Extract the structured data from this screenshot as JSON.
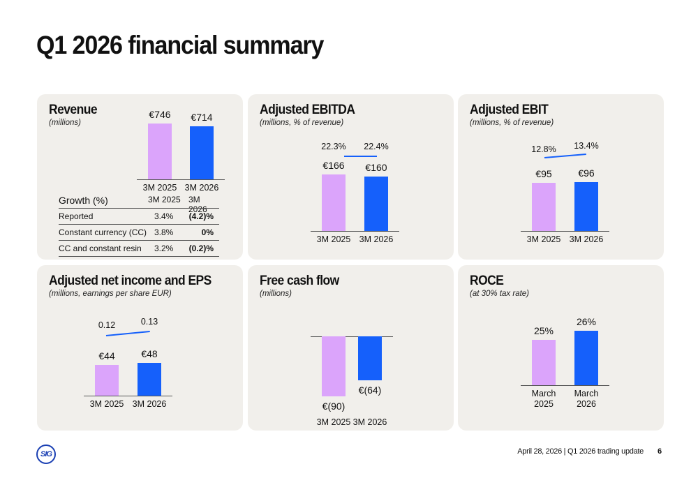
{
  "title": "Q1 2026 financial summary",
  "colors": {
    "prior": "#dba4fb",
    "current": "#1560fb",
    "panel": "#f1efeb"
  },
  "chart_data": [
    {
      "type": "bar",
      "title": "Revenue",
      "subtitle": "(millions)",
      "categories": [
        "3M 2025",
        "3M 2026"
      ],
      "values": [
        746,
        714
      ],
      "value_labels": [
        "€746",
        "€714"
      ]
    },
    {
      "type": "bar",
      "title": "Adjusted EBITDA",
      "subtitle": "(millions, % of revenue)",
      "categories": [
        "3M 2025",
        "3M 2026"
      ],
      "values": [
        166,
        160
      ],
      "value_labels": [
        "€166",
        "€160"
      ],
      "margins": [
        "22.3%",
        "22.4%"
      ]
    },
    {
      "type": "bar",
      "title": "Adjusted EBIT",
      "subtitle": "(millions, % of revenue)",
      "categories": [
        "3M 2025",
        "3M 2026"
      ],
      "values": [
        95,
        96
      ],
      "value_labels": [
        "€95",
        "€96"
      ],
      "margins": [
        "12.8%",
        "13.4%"
      ]
    },
    {
      "type": "bar",
      "title": "Adjusted net income and EPS",
      "subtitle": "(millions, earnings per share EUR)",
      "categories": [
        "3M 2025",
        "3M 2026"
      ],
      "values": [
        44,
        48
      ],
      "value_labels": [
        "€44",
        "€48"
      ],
      "margins": [
        "0.12",
        "0.13"
      ]
    },
    {
      "type": "bar",
      "title": "Free cash flow",
      "subtitle": "(millions)",
      "categories": [
        "3M 2025",
        "3M 2026"
      ],
      "values": [
        -90,
        -64
      ],
      "value_labels": [
        "€(90)",
        "€(64)"
      ]
    },
    {
      "type": "bar",
      "title": "ROCE",
      "subtitle": "(at 30% tax rate)",
      "categories": [
        "March 2025",
        "March 2026"
      ],
      "values": [
        25,
        26
      ],
      "value_labels": [
        "25%",
        "26%"
      ]
    }
  ],
  "growth_table": {
    "header": [
      "Growth (%)",
      "3M 2025",
      "3M 2026"
    ],
    "rows": [
      {
        "label": "Reported",
        "prior": "3.4%",
        "current": "(4.2)%"
      },
      {
        "label": "Constant currency (CC)",
        "prior": "3.8%",
        "current": "0%"
      },
      {
        "label": "CC and constant resin",
        "prior": "3.2%",
        "current": "(0.2)%"
      }
    ]
  },
  "footer": {
    "text": "April 28, 2026  |  Q1 2026 trading update",
    "page": "6",
    "logo": "SIG"
  }
}
